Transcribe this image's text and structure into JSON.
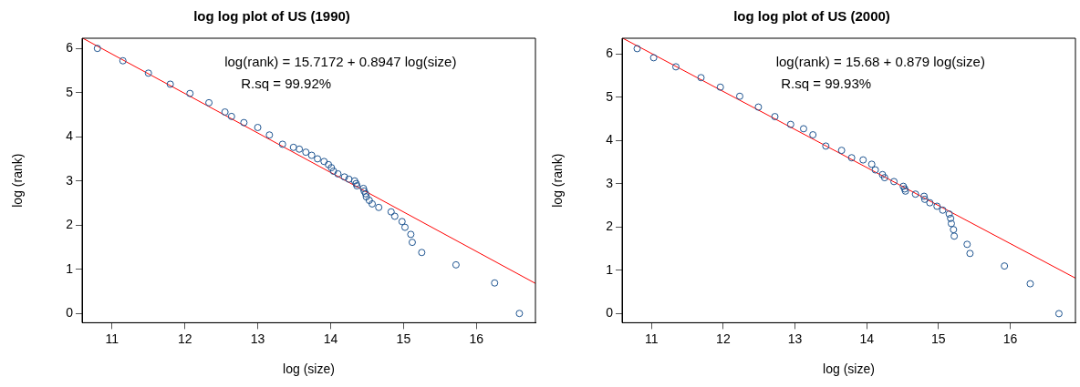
{
  "chart_data": [
    {
      "type": "scatter",
      "title": "log log plot of US (1990)",
      "xlabel": "log (size)",
      "ylabel": "log (rank)",
      "xlim": [
        10.59,
        16.81
      ],
      "ylim": [
        -0.21,
        6.23
      ],
      "xticks": [
        11,
        12,
        13,
        14,
        15,
        16
      ],
      "yticks": [
        0,
        1,
        2,
        3,
        4,
        5,
        6
      ],
      "grid": false,
      "legend": false,
      "marker": "circle",
      "annotations": [
        "log(rank) = 15.7172 + 0.8947 log(size)",
        "R.sq = 99.92%"
      ],
      "series": [
        {
          "color": "#1f5591",
          "x": [
            10.8,
            11.15,
            11.5,
            11.8,
            12.07,
            12.33,
            12.55,
            12.64,
            12.81,
            13.0,
            13.16,
            13.34,
            13.49,
            13.57,
            13.66,
            13.74,
            13.82,
            13.91,
            13.97,
            14.01,
            14.04,
            14.1,
            14.19,
            14.25,
            14.33,
            14.35,
            14.36,
            14.45,
            14.46,
            14.48,
            14.49,
            14.53,
            14.57,
            14.66,
            14.83,
            14.88,
            14.98,
            15.02,
            15.1,
            15.12,
            15.25,
            15.72,
            16.25,
            16.59
          ],
          "values": [
            6.0,
            5.72,
            5.44,
            5.19,
            4.98,
            4.77,
            4.56,
            4.46,
            4.32,
            4.21,
            4.04,
            3.83,
            3.76,
            3.72,
            3.65,
            3.58,
            3.5,
            3.44,
            3.37,
            3.3,
            3.22,
            3.16,
            3.09,
            3.04,
            3.0,
            2.94,
            2.89,
            2.83,
            2.77,
            2.71,
            2.64,
            2.56,
            2.48,
            2.4,
            2.3,
            2.2,
            2.08,
            1.95,
            1.79,
            1.61,
            1.38,
            1.1,
            0.69,
            0.0
          ]
        },
        {
          "type": "line",
          "marker": "none",
          "color": "#ff0000",
          "x": [
            10.6,
            16.81
          ],
          "values": [
            6.23,
            0.68
          ]
        }
      ]
    },
    {
      "type": "scatter",
      "title": "log log plot of US (2000)",
      "xlabel": "log (size)",
      "ylabel": "log (rank)",
      "xlim": [
        10.59,
        16.91
      ],
      "ylim": [
        -0.21,
        6.36
      ],
      "xticks": [
        11,
        12,
        13,
        14,
        15,
        16
      ],
      "yticks": [
        0,
        1,
        2,
        3,
        4,
        5,
        6
      ],
      "grid": false,
      "legend": false,
      "marker": "circle",
      "annotations": [
        "log(rank) = 15.68 + 0.879 log(size)",
        "R.sq = 99.93%"
      ],
      "series": [
        {
          "color": "#1f5591",
          "x": [
            10.8,
            11.03,
            11.34,
            11.69,
            11.96,
            12.23,
            12.49,
            12.72,
            12.94,
            13.12,
            13.25,
            13.43,
            13.65,
            13.79,
            13.95,
            14.07,
            14.12,
            14.22,
            14.25,
            14.38,
            14.51,
            14.53,
            14.54,
            14.68,
            14.8,
            14.81,
            14.88,
            14.98,
            15.06,
            15.15,
            15.17,
            15.18,
            15.21,
            15.22,
            15.4,
            15.44,
            15.92,
            16.28,
            16.68
          ],
          "values": [
            6.12,
            5.91,
            5.7,
            5.45,
            5.23,
            5.02,
            4.77,
            4.55,
            4.37,
            4.27,
            4.13,
            3.87,
            3.77,
            3.6,
            3.55,
            3.45,
            3.32,
            3.21,
            3.14,
            3.05,
            2.94,
            2.88,
            2.83,
            2.76,
            2.71,
            2.64,
            2.56,
            2.48,
            2.39,
            2.3,
            2.2,
            2.08,
            1.94,
            1.79,
            1.6,
            1.39,
            1.1,
            0.69,
            0.0
          ]
        },
        {
          "type": "line",
          "marker": "none",
          "color": "#ff0000",
          "x": [
            10.6,
            16.91
          ],
          "values": [
            6.36,
            0.82
          ]
        }
      ]
    }
  ]
}
